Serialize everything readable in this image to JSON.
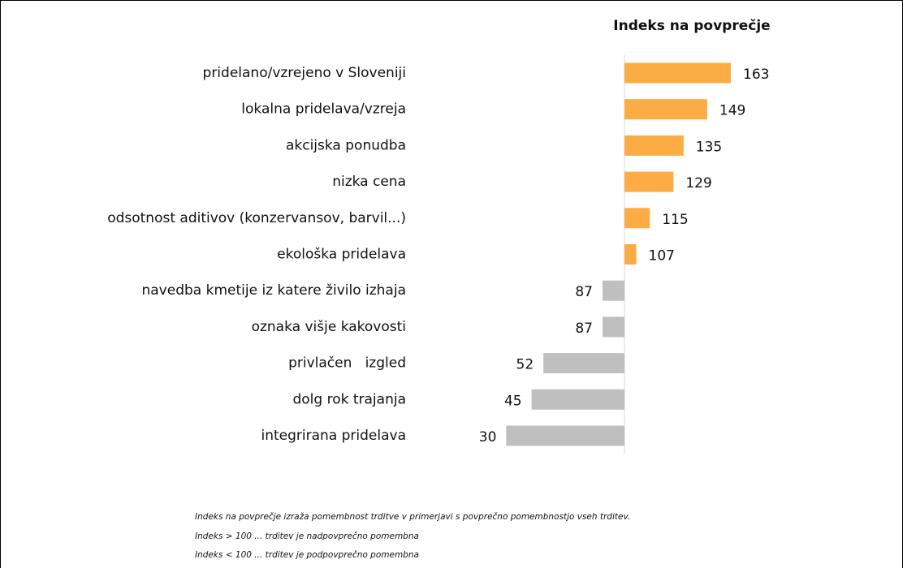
{
  "chart_data": {
    "type": "diverging-bar",
    "title": "Indeks na povprečje",
    "categories": [
      "pridelano/vzrejeno v Sloveniji",
      "lokalna pridelava/vzreja",
      "akcijska ponudba",
      "nizka cena",
      "odsotnost aditivov (konzervansov, barvil...)",
      "ekološka pridelava",
      "navedba kmetije iz katere živilo izhaja",
      "oznaka višje kakovosti",
      "privlačen   izgled",
      "dolg rok trajanja",
      "integrirana pridelava"
    ],
    "values": [
      163,
      149,
      135,
      129,
      115,
      107,
      87,
      87,
      52,
      45,
      30
    ],
    "baseline": 100,
    "color_above": "#fbac45",
    "color_below": "#bfbfbf",
    "notes": [
      "Indeks na povprečje izraža pomembnost trditve v primerjavi s povprečno pomembnostjo vseh trditev.",
      "Indeks > 100 ... trditev je nadpovprečno pomembna",
      "Indeks < 100 ... trditev je podpovprečno pomembna"
    ]
  }
}
